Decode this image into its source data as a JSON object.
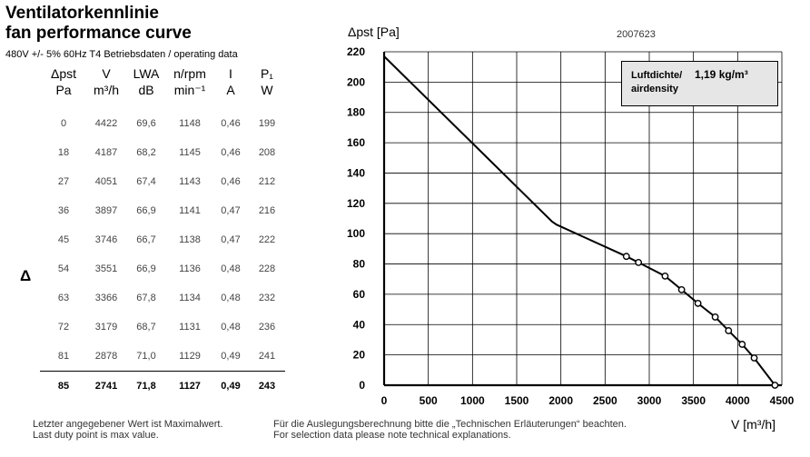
{
  "header": {
    "title_de": "Ventilatorkennlinie",
    "title_en": "fan performance curve",
    "conditions": "480V +/- 5% 60Hz T4 Betriebsdaten / operating data"
  },
  "table": {
    "columns": [
      {
        "name": "Δpst",
        "unit": "Pa"
      },
      {
        "name": "V",
        "unit": "m³/h"
      },
      {
        "name": "LWA",
        "unit": "dB"
      },
      {
        "name": "n/rpm",
        "unit": "min⁻¹"
      },
      {
        "name": "I",
        "unit": "A"
      },
      {
        "name": "P₁",
        "unit": "W"
      }
    ],
    "rows": [
      [
        "0",
        "4422",
        "69,6",
        "1148",
        "0,46",
        "199"
      ],
      [
        "18",
        "4187",
        "68,2",
        "1145",
        "0,46",
        "208"
      ],
      [
        "27",
        "4051",
        "67,4",
        "1143",
        "0,46",
        "212"
      ],
      [
        "36",
        "3897",
        "66,9",
        "1141",
        "0,47",
        "216"
      ],
      [
        "45",
        "3746",
        "66,7",
        "1138",
        "0,47",
        "222"
      ],
      [
        "54",
        "3551",
        "66,9",
        "1136",
        "0,48",
        "228"
      ],
      [
        "63",
        "3366",
        "67,8",
        "1134",
        "0,48",
        "232"
      ],
      [
        "72",
        "3179",
        "68,7",
        "1131",
        "0,48",
        "236"
      ],
      [
        "81",
        "2878",
        "71,0",
        "1129",
        "0,49",
        "241"
      ],
      [
        "85",
        "2741",
        "71,8",
        "1127",
        "0,49",
        "243"
      ]
    ],
    "marker": "Δ"
  },
  "footnotes": {
    "left_de": "Letzter angegebener Wert ist Maximalwert.",
    "left_en": "Last duty point is max value.",
    "right_de": "Für die Auslegungsberechnung bitte die „Technischen Erläuterungen“ beachten.",
    "right_en": "For selection data please note technical explanations."
  },
  "chart_data": {
    "type": "line",
    "ylabel": "Δpst [Pa]",
    "xlabel": "V [m³/h]",
    "doc_number": "2007623",
    "xlim": [
      0,
      4500
    ],
    "ylim": [
      0,
      220
    ],
    "x_ticks": [
      0,
      500,
      1000,
      1500,
      2000,
      2500,
      3000,
      3500,
      4000,
      4500
    ],
    "y_ticks": [
      0,
      20,
      40,
      60,
      80,
      100,
      120,
      140,
      160,
      180,
      200,
      220
    ],
    "grid": true,
    "legend_box": {
      "label_de": "Luftdichte/",
      "label_en": "airdensity",
      "value": "1,19 kg/m³"
    },
    "series": [
      {
        "x": [
          0,
          1900,
          1950,
          2741,
          2878,
          3179,
          3366,
          3551,
          3746,
          3897,
          4051,
          4187,
          4422
        ],
        "y": [
          217,
          108,
          106,
          85,
          81,
          72,
          63,
          54,
          45,
          36,
          27,
          18,
          0
        ]
      }
    ],
    "markers": {
      "x": [
        2741,
        2878,
        3179,
        3366,
        3551,
        3746,
        3897,
        4051,
        4187,
        4422
      ],
      "y": [
        85,
        81,
        72,
        63,
        54,
        45,
        36,
        27,
        18,
        0
      ]
    }
  },
  "colors": {
    "curve": "#000000",
    "grid": "#000000",
    "legend_bg": "#e6e6e6"
  }
}
